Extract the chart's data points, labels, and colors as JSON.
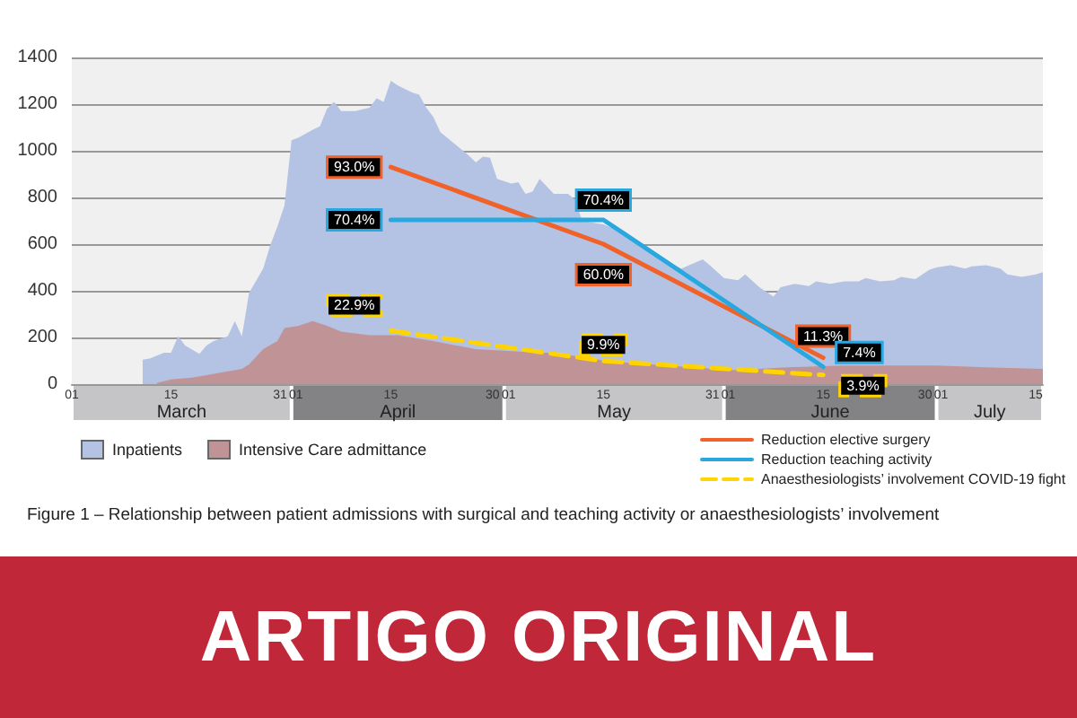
{
  "chart_data": {
    "type": "area",
    "title": "Figure 1 – Relationship between patient admissions with surgical and teaching activity or anaesthesiologists’ involvement",
    "xlim": [
      "--03-01",
      "--07-16"
    ],
    "xticks": [
      {
        "value": "--03-01",
        "label": "01"
      },
      {
        "value": "--03-15",
        "label": "15"
      },
      {
        "value": "--03-31",
        "label": "31"
      },
      {
        "value": "--04-01",
        "label": "01"
      },
      {
        "value": "--04-15",
        "label": "15"
      },
      {
        "value": "--04-30",
        "label": "30"
      },
      {
        "value": "--05-01",
        "label": "01"
      },
      {
        "value": "--05-15",
        "label": "15"
      },
      {
        "value": "--05-31",
        "label": "31"
      },
      {
        "value": "--06-01",
        "label": "01"
      },
      {
        "value": "--06-15",
        "label": "15"
      },
      {
        "value": "--06-30",
        "label": "30"
      },
      {
        "value": "--07-01",
        "label": "01"
      },
      {
        "value": "--07-15",
        "label": "15"
      }
    ],
    "ylim": [
      0,
      1400
    ],
    "yticks": [
      0,
      200,
      400,
      600,
      800,
      1000,
      1200,
      1400
    ],
    "y2lim": [
      0,
      140
    ],
    "grid": "y",
    "legend": "bottom",
    "marker": "none",
    "series": [
      {
        "name": "Inpatients",
        "color": "#b4c3e3",
        "x": [
          "--03-11",
          "--03-12",
          "--03-14",
          "--03-15",
          "--03-16",
          "--03-17",
          "--03-19",
          "--03-20",
          "--03-21",
          "--03-23",
          "--03-24",
          "--03-25",
          "--03-26",
          "--03-28",
          "--03-29",
          "--03-30",
          "--03-31",
          "--04-01",
          "--04-02",
          "--04-04",
          "--04-05",
          "--04-06",
          "--04-07",
          "--04-08",
          "--04-10",
          "--04-12",
          "--04-13",
          "--04-14",
          "--04-15",
          "--04-16",
          "--04-18",
          "--04-19",
          "--04-20",
          "--04-21",
          "--04-22",
          "--04-24",
          "--04-26",
          "--04-27",
          "--04-28",
          "--04-29",
          "--04-30",
          "--05-02",
          "--05-03",
          "--05-04",
          "--05-05",
          "--05-06",
          "--05-08",
          "--05-10",
          "--05-11",
          "--05-12",
          "--05-15",
          "--05-17",
          "--05-18",
          "--05-20",
          "--05-24",
          "--05-26",
          "--05-29",
          "--05-30",
          "--06-01",
          "--06-03",
          "--06-04",
          "--06-06",
          "--06-08",
          "--06-09",
          "--06-11",
          "--06-13",
          "--06-14",
          "--06-16",
          "--06-18",
          "--06-20",
          "--06-21",
          "--06-23",
          "--06-25",
          "--06-26",
          "--06-28",
          "--06-30",
          "--07-01",
          "--07-03",
          "--07-05",
          "--07-06",
          "--07-08",
          "--07-10",
          "--07-11",
          "--07-13",
          "--07-15",
          "--07-16"
        ],
        "values": [
          105,
          110,
          135,
          135,
          205,
          165,
          130,
          165,
          185,
          205,
          270,
          205,
          390,
          495,
          595,
          675,
          765,
          1045,
          1057,
          1090,
          1105,
          1180,
          1210,
          1170,
          1170,
          1185,
          1225,
          1210,
          1300,
          1280,
          1250,
          1240,
          1185,
          1145,
          1080,
          1030,
          980,
          950,
          975,
          970,
          880,
          860,
          865,
          815,
          825,
          880,
          815,
          815,
          790,
          700,
          685,
          660,
          635,
          595,
          520,
          495,
          535,
          510,
          455,
          445,
          470,
          415,
          375,
          415,
          430,
          420,
          440,
          430,
          440,
          440,
          455,
          440,
          445,
          460,
          450,
          490,
          500,
          510,
          495,
          505,
          510,
          495,
          470,
          460,
          470,
          480
        ]
      },
      {
        "name": "Intensive Care admittance",
        "color": "#c09496",
        "x": [
          "--03-13",
          "--03-15",
          "--03-18",
          "--03-20",
          "--03-23",
          "--03-25",
          "--03-26",
          "--03-28",
          "--03-30",
          "--03-31",
          "--04-02",
          "--04-04",
          "--04-06",
          "--04-08",
          "--04-12",
          "--04-16",
          "--04-21",
          "--04-27",
          "--05-06",
          "--05-08",
          "--05-16",
          "--05-24",
          "--06-02",
          "--06-10",
          "--06-18",
          "--06-27",
          "--07-01",
          "--07-08",
          "--07-16"
        ],
        "values": [
          5,
          20,
          28,
          38,
          55,
          65,
          85,
          150,
          185,
          240,
          250,
          270,
          250,
          225,
          210,
          210,
          185,
          150,
          135,
          135,
          97,
          80,
          60,
          72,
          80,
          80,
          80,
          72,
          65
        ]
      },
      {
        "name": "Reduction elective surgery",
        "color": "#f0622a",
        "type": "line",
        "axis": "y2",
        "line_style": "solid",
        "x": [
          "--04-15",
          "--05-15",
          "--06-15"
        ],
        "values": [
          93.0,
          60.0,
          11.3
        ],
        "value_labels": [
          "93.0%",
          "60.0%",
          "11.3%"
        ]
      },
      {
        "name": "Reduction teaching activity",
        "color": "#29a8e0",
        "type": "line",
        "axis": "y2",
        "line_style": "solid",
        "x": [
          "--04-15",
          "--05-15",
          "--06-15"
        ],
        "values": [
          70.4,
          70.4,
          7.4
        ],
        "value_labels": [
          "70.4%",
          "70.4%",
          "7.4%"
        ]
      },
      {
        "name": "Anaesthesiologists’ involvement COVID-19 fight",
        "color": "#ffd400",
        "type": "line",
        "axis": "y2",
        "line_style": "dashed",
        "x": [
          "--04-15",
          "--05-15",
          "--06-15"
        ],
        "values": [
          22.9,
          9.9,
          3.9
        ],
        "value_labels": [
          "22.9%",
          "9.9%",
          "3.9%"
        ]
      }
    ],
    "annotations": [
      "March",
      "April",
      "May",
      "June",
      "July",
      "ARTIGO ORIGINAL"
    ]
  }
}
